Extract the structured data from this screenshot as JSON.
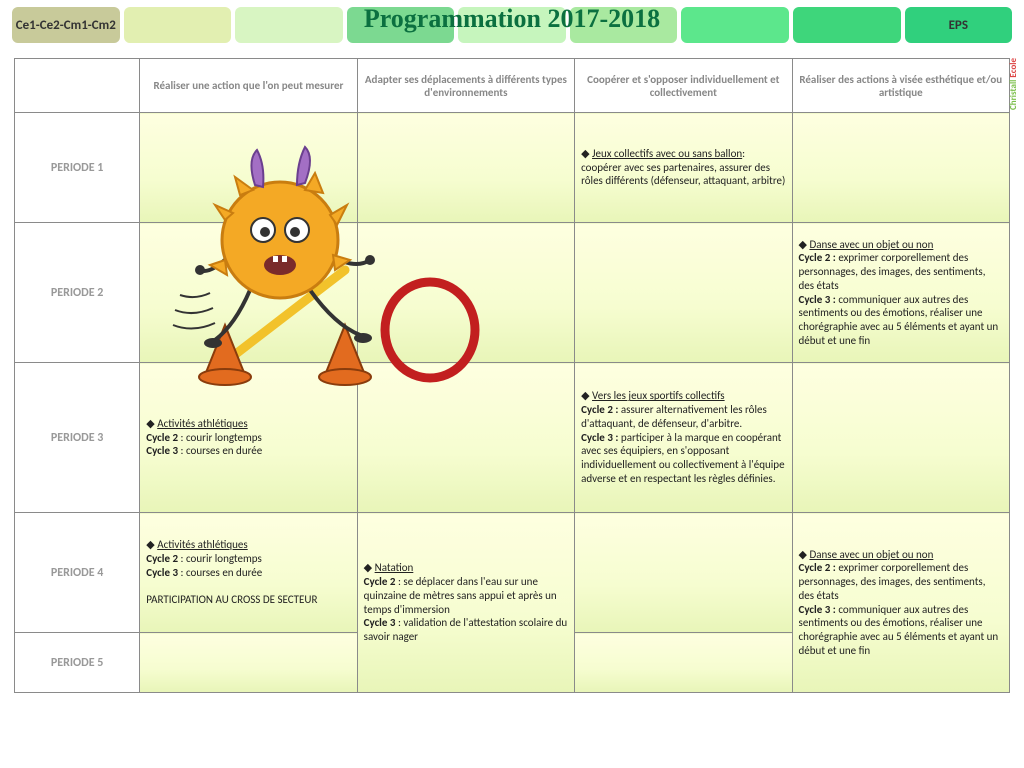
{
  "header": {
    "title": "Programmation 2017-2018",
    "left_label": "Ce1-Ce2-Cm1-Cm2",
    "right_label": "EPS",
    "pill_colors": [
      "#c8ca9a",
      "#e2efb1",
      "#d8f5c2",
      "#7cd991",
      "#c6f5bd",
      "#a9e9a0",
      "#5ce78c",
      "#3ed67b",
      "#30d07d"
    ]
  },
  "watermark": {
    "a": "Christall",
    "b": "Ecole"
  },
  "columns": [
    "",
    "Réaliser une action que l'on peut mesurer",
    "Adapter ses déplacements à différents types d'environnements",
    "Coopérer et s'opposer individuellement et collectivement",
    "Réaliser des actions à visée esthétique et/ou artistique"
  ],
  "rows": {
    "p1": {
      "label": "PERIODE 1",
      "c3": {
        "lead": "Jeux collectifs avec ou sans ballon",
        "rest": ":\ncoopérer avec ses partenaires, assurer des rôles différents (défenseur, attaquant, arbitre)"
      }
    },
    "p2": {
      "label": "PERIODE 2",
      "c4": {
        "lead": "Danse avec un objet ou non",
        "c2lbl": "Cycle 2 :",
        "c2": " exprimer corporellement des personnages, des images, des sentiments, des états",
        "c3lbl": "Cycle 3 :",
        "c3": " communiquer aux autres des sentiments ou des émotions, réaliser une chorégraphie avec au 5 éléments et ayant un début et une fin"
      }
    },
    "p3": {
      "label": "PERIODE 3",
      "c1": {
        "lead": "Activités athlétiques",
        "c2lbl": "Cycle 2",
        "c2": " : courir longtemps",
        "c3lbl": "Cycle 3",
        "c3": " : courses en durée"
      },
      "c3": {
        "lead": "Vers les jeux sportifs collectifs",
        "c2lbl": "Cycle 2 :",
        "c2": " assurer alternativement les rôles d'attaquant, de défenseur, d'arbitre.",
        "c3lbl": "Cycle 3 :",
        "c3": " participer à la marque en coopérant avec ses équipiers, en s'opposant individuellement ou collectivement à l'équipe adverse et en respectant les règles définies."
      }
    },
    "p4": {
      "label": "PERIODE 4",
      "c1": {
        "lead": "Activités athlétiques",
        "c2lbl": "Cycle 2",
        "c2": " : courir longtemps",
        "c3lbl": "Cycle 3",
        "c3": " : courses en durée",
        "extra": "PARTICIPATION AU CROSS DE SECTEUR"
      },
      "c2": {
        "lead": "Natation",
        "c2lbl": "Cycle 2",
        "c2": " : se déplacer dans l'eau sur une quinzaine de mètres sans appui et après un temps d'immersion",
        "c3lbl": "Cycle 3",
        "c3": " : validation de l'attestation scolaire du savoir nager"
      },
      "c4": {
        "lead": "Danse avec un objet ou non",
        "c2lbl": "Cycle 2 :",
        "c2": " exprimer corporellement des personnages, des images, des sentiments, des états",
        "c3lbl": "Cycle 3 :",
        "c3": " communiquer aux autres des sentiments ou des émotions, réaliser une chorégraphie avec au 5 éléments et ayant un début et une fin"
      }
    },
    "p5": {
      "label": "PERIODE 5"
    }
  },
  "row_heights": {
    "p1": 110,
    "p2": 140,
    "p3": 150,
    "p4": 120,
    "p5": 60
  },
  "illustration": {
    "body_color": "#f4a925",
    "body_stroke": "#c97d10",
    "horn_color": "#a36fc4",
    "cone_color": "#e26b1f",
    "bar_color": "#f2c22b",
    "hoop_color": "#c21f1f"
  }
}
